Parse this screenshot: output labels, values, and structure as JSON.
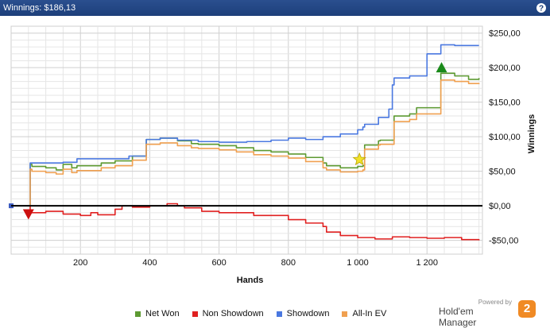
{
  "window": {
    "title": "Winnings: $186,13",
    "help_icon": "question-icon"
  },
  "chart_data": {
    "type": "line",
    "xlabel": "Hands",
    "ylabel": "Winnings",
    "xlim": [
      0,
      1360
    ],
    "ylim": [
      -70,
      260
    ],
    "xticks": [
      200,
      400,
      600,
      800,
      1000,
      1200
    ],
    "xtick_labels": [
      "200",
      "400",
      "600",
      "800",
      "1 000",
      "1 200"
    ],
    "yticks": [
      250,
      200,
      150,
      100,
      50,
      0,
      -50
    ],
    "ytick_labels": [
      "$250,00",
      "$200,00",
      "$150,00",
      "$100,00",
      "$50,00",
      "$0,00",
      "-$50,00"
    ],
    "grid": true,
    "legend_position": "bottom",
    "series": [
      {
        "name": "Net Won",
        "color": "#5d9a32",
        "x": [
          0,
          50,
          55,
          60,
          100,
          130,
          150,
          175,
          190,
          260,
          300,
          350,
          385,
          390,
          430,
          480,
          520,
          540,
          600,
          650,
          700,
          750,
          800,
          850,
          900,
          910,
          950,
          1000,
          1015,
          1020,
          1060,
          1065,
          1100,
          1105,
          1150,
          1170,
          1200,
          1240,
          1280,
          1320,
          1350
        ],
        "y": [
          0,
          0,
          60,
          57,
          55,
          52,
          60,
          55,
          58,
          62,
          65,
          72,
          72,
          96,
          98,
          94,
          90,
          89,
          87,
          84,
          80,
          78,
          75,
          70,
          62,
          58,
          55,
          57,
          58,
          88,
          94,
          95,
          95,
          130,
          133,
          142,
          142,
          192,
          188,
          183,
          185
        ]
      },
      {
        "name": "Non Showdown",
        "color": "#e02020",
        "x": [
          0,
          50,
          55,
          100,
          150,
          200,
          230,
          250,
          300,
          320,
          350,
          400,
          450,
          480,
          500,
          550,
          600,
          700,
          800,
          850,
          900,
          910,
          950,
          1000,
          1050,
          1100,
          1150,
          1200,
          1250,
          1300,
          1350
        ],
        "y": [
          0,
          0,
          -10,
          -8,
          -12,
          -14,
          -10,
          -13,
          -5,
          0,
          -2,
          0,
          3,
          0,
          -3,
          -8,
          -10,
          -14,
          -20,
          -25,
          -30,
          -38,
          -43,
          -46,
          -48,
          -45,
          -46,
          -47,
          -46,
          -49,
          -50
        ]
      },
      {
        "name": "Showdown",
        "color": "#4a78e0",
        "x": [
          0,
          50,
          55,
          100,
          150,
          190,
          260,
          340,
          390,
          430,
          480,
          540,
          600,
          680,
          750,
          800,
          850,
          900,
          950,
          1000,
          1015,
          1020,
          1060,
          1090,
          1100,
          1105,
          1150,
          1200,
          1240,
          1280,
          1350
        ],
        "y": [
          0,
          0,
          62,
          62,
          63,
          68,
          68,
          72,
          96,
          98,
          95,
          93,
          92,
          93,
          95,
          98,
          96,
          100,
          104,
          110,
          114,
          118,
          128,
          140,
          175,
          185,
          188,
          220,
          233,
          232,
          232
        ]
      },
      {
        "name": "All-In EV",
        "color": "#f0a050",
        "x": [
          0,
          50,
          55,
          60,
          100,
          130,
          150,
          175,
          190,
          260,
          300,
          350,
          385,
          390,
          430,
          480,
          520,
          540,
          600,
          650,
          700,
          750,
          800,
          850,
          900,
          910,
          950,
          1000,
          1015,
          1020,
          1060,
          1065,
          1100,
          1105,
          1150,
          1170,
          1200,
          1240,
          1280,
          1320,
          1350
        ],
        "y": [
          0,
          0,
          53,
          50,
          48,
          46,
          53,
          48,
          51,
          55,
          58,
          66,
          66,
          89,
          91,
          87,
          84,
          83,
          81,
          78,
          74,
          72,
          69,
          64,
          55,
          52,
          49,
          50,
          52,
          82,
          88,
          89,
          89,
          122,
          125,
          133,
          133,
          182,
          180,
          177,
          176
        ]
      }
    ],
    "markers": [
      {
        "type": "triangle-down",
        "x": 50,
        "y": -12,
        "color": "#cc1010"
      },
      {
        "type": "triangle-up",
        "x": 1242,
        "y": 200,
        "color": "#1a8a1a"
      },
      {
        "type": "star",
        "x": 1005,
        "y": 67,
        "color": "#f2e22a"
      }
    ]
  },
  "branding": {
    "powered_by": "Powered by",
    "product": "Hold'em Manager",
    "badge": "2"
  }
}
